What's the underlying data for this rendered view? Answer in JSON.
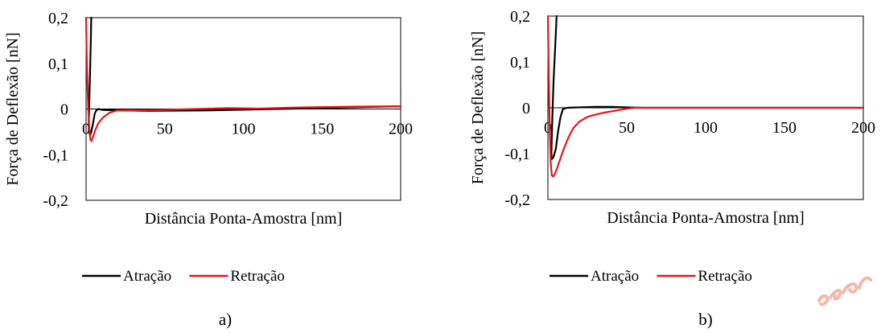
{
  "figure": {
    "watermark_icon": "handwritten-scribble",
    "colors": {
      "attraction": "#000000",
      "retraction": "#e8141b",
      "watermark": "#f3b8a8"
    }
  },
  "chart_data": [
    {
      "type": "line",
      "panel_label": "a)",
      "xlabel": "Distância Ponta-Amostra [nm]",
      "ylabel": "Força de Deflexão [nN]",
      "xlim": [
        0,
        200
      ],
      "ylim": [
        -0.2,
        0.2
      ],
      "x_ticks": [
        0,
        50,
        100,
        150,
        200
      ],
      "x_tick_labels": [
        "0",
        "50",
        "100",
        "150",
        "200"
      ],
      "y_ticks": [
        0.2,
        0.1,
        0,
        -0.1,
        -0.2
      ],
      "y_tick_labels": [
        "0,2",
        "0,1",
        "0",
        "-0,1",
        "-0,2"
      ],
      "grid": false,
      "legend": "bottom",
      "series": [
        {
          "name": "Atração",
          "color": "#000000",
          "x": [
            3.3,
            3.0,
            2.6,
            2.2,
            1.9,
            1.7,
            1.9,
            2.5,
            3.3,
            4.5,
            5.5,
            6.5,
            8,
            10,
            20,
            40,
            80,
            120,
            160,
            200
          ],
          "y": [
            0.2,
            0.15,
            0.09,
            0.04,
            0.0,
            -0.03,
            -0.05,
            -0.058,
            -0.05,
            -0.03,
            -0.01,
            -0.003,
            0.0,
            -0.002,
            -0.003,
            -0.004,
            -0.003,
            0.0,
            0.003,
            0.006
          ]
        },
        {
          "name": "Retração",
          "color": "#e8141b",
          "x": [
            0,
            0.4,
            0.9,
            1.4,
            2.0,
            2.7,
            3.5,
            4.5,
            6,
            8,
            11,
            15,
            20,
            30,
            50,
            70,
            90,
            110,
            130,
            150,
            170,
            200
          ],
          "y": [
            0.2,
            0.12,
            0.05,
            0.0,
            -0.04,
            -0.067,
            -0.07,
            -0.06,
            -0.045,
            -0.03,
            -0.018,
            -0.008,
            -0.003,
            -0.003,
            -0.002,
            0.0,
            0.002,
            0.001,
            0.003,
            0.004,
            0.005,
            0.006
          ]
        }
      ]
    },
    {
      "type": "line",
      "panel_label": "b)",
      "xlabel": "Distância  Ponta-Amostra [nm]",
      "ylabel": "Força de Deflexão [nN]",
      "xlim": [
        0,
        200
      ],
      "ylim": [
        -0.2,
        0.2
      ],
      "x_ticks": [
        0,
        50,
        100,
        150,
        200
      ],
      "x_tick_labels": [
        "0",
        "50",
        "100",
        "150",
        "200"
      ],
      "y_ticks": [
        0.2,
        0.1,
        0,
        -0.1,
        -0.2
      ],
      "y_tick_labels": [
        "0,2",
        "0,1",
        "0",
        "-0,1",
        "-0,2"
      ],
      "grid": false,
      "legend": "bottom",
      "series": [
        {
          "name": "Atração",
          "color": "#000000",
          "x": [
            5.5,
            5.0,
            4.3,
            3.6,
            3.0,
            2.5,
            2.2,
            2.5,
            3.5,
            5.0,
            6.5,
            8.0,
            9.5,
            12,
            20,
            30,
            40,
            50,
            60,
            200
          ],
          "y": [
            0.2,
            0.16,
            0.11,
            0.06,
            0.0,
            -0.06,
            -0.1,
            -0.112,
            -0.108,
            -0.09,
            -0.05,
            -0.02,
            -0.003,
            0.0,
            0.001,
            0.002,
            0.002,
            0.001,
            0.0,
            0.0
          ]
        },
        {
          "name": "Retração",
          "color": "#e8141b",
          "x": [
            0,
            0.3,
            0.7,
            1.2,
            1.8,
            2.5,
            3.5,
            5,
            7,
            10,
            13,
            16,
            20,
            25,
            30,
            35,
            40,
            45,
            50,
            55,
            60,
            100,
            150,
            200
          ],
          "y": [
            0.2,
            0.12,
            0.04,
            -0.05,
            -0.12,
            -0.148,
            -0.15,
            -0.14,
            -0.12,
            -0.09,
            -0.065,
            -0.045,
            -0.03,
            -0.02,
            -0.015,
            -0.011,
            -0.008,
            -0.005,
            -0.002,
            0.0,
            0.0,
            0.0,
            0.0,
            0.0
          ]
        }
      ]
    }
  ]
}
